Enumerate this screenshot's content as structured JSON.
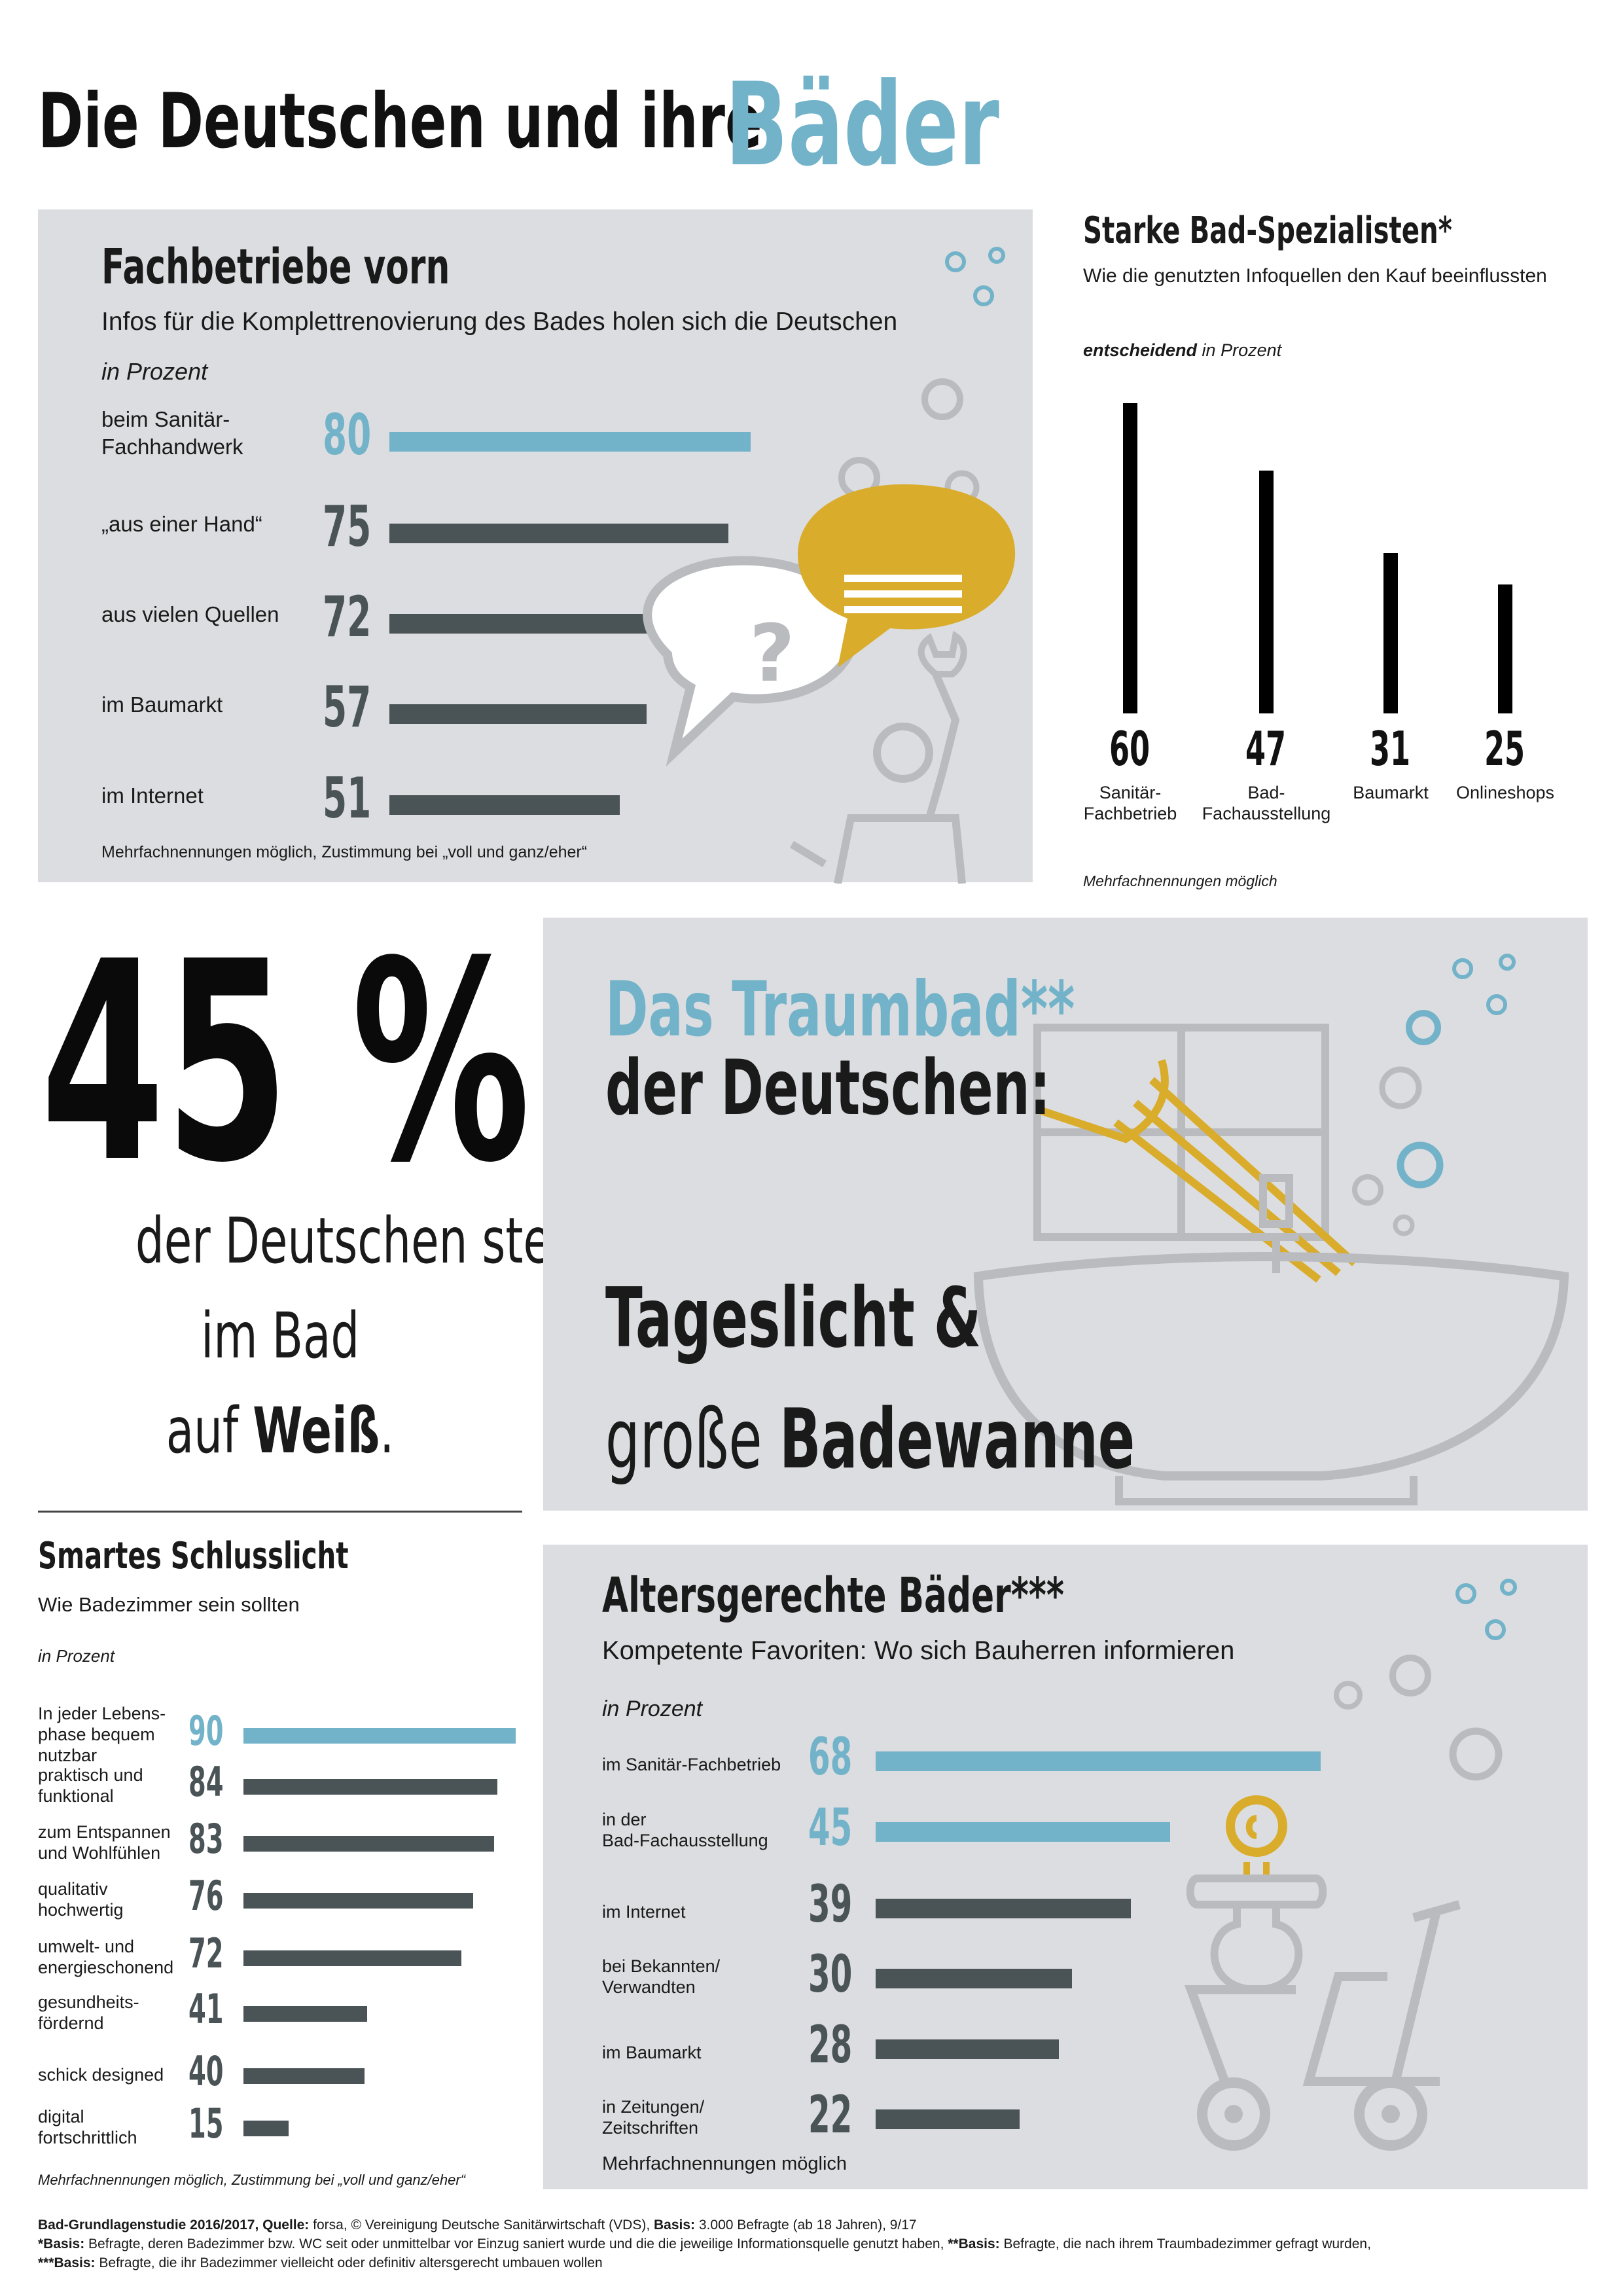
{
  "headline": {
    "part1": "Die Deutschen und ihre",
    "part2": "Bäder"
  },
  "panel1": {
    "title": "Fachbetriebe vorn",
    "subtitle": "Infos für die Komplettrenovierung des Bades holen sich die Deutschen",
    "unit": "in Prozent",
    "rows": [
      {
        "label1": "beim Sanitär-",
        "label2": "Fachhandwerk",
        "value": "80"
      },
      {
        "label1": "„aus einer Hand“",
        "label2": "",
        "value": "75"
      },
      {
        "label1": "aus vielen Quellen",
        "label2": "",
        "value": "72"
      },
      {
        "label1": "im Baumarkt",
        "label2": "",
        "value": "57"
      },
      {
        "label1": "im Internet",
        "label2": "",
        "value": "51"
      }
    ],
    "footnote": "Mehrfachnennungen möglich, Zustimmung bei „voll und ganz/eher“"
  },
  "panel2": {
    "title": "Starke Bad-Spezialisten*",
    "subtitle": "Wie die genutzten Infoquellen den Kauf beeinflussten",
    "unit_bold": "entscheidend",
    "unit_rest": " in Prozent",
    "bars": [
      {
        "value": "60",
        "label1": "Sanitär-",
        "label2": "Fachbetrieb"
      },
      {
        "value": "47",
        "label1": "Bad-",
        "label2": "Fachausstellung"
      },
      {
        "value": "31",
        "label1": "Baumarkt",
        "label2": ""
      },
      {
        "value": "25",
        "label1": "Onlineshops",
        "label2": ""
      }
    ],
    "footnote": "Mehrfachnennungen möglich"
  },
  "panel3": {
    "big": "45 %",
    "line1": "der Deutschen stehen",
    "line2": "im Bad",
    "line3a": "auf ",
    "line3b": "Weiß",
    "line3c": "."
  },
  "panel4": {
    "title1": "Das Traumbad**",
    "title2": "der Deutschen:",
    "line1": "Tageslicht &",
    "line2a": "große ",
    "line2b": "Badewanne"
  },
  "panel5": {
    "title": "Smartes Schlusslicht",
    "subtitle": "Wie Badezimmer sein sollten",
    "unit": "in Prozent",
    "rows": [
      {
        "label": [
          "In jeder Lebens-",
          "phase bequem",
          "nutzbar"
        ],
        "value": "90"
      },
      {
        "label": [
          "praktisch und",
          "funktional"
        ],
        "value": "84"
      },
      {
        "label": [
          "zum Entspannen",
          "und Wohlfühlen"
        ],
        "value": "83"
      },
      {
        "label": [
          "qualitativ",
          "hochwertig"
        ],
        "value": "76"
      },
      {
        "label": [
          "umwelt- und",
          "energieschonend"
        ],
        "value": "72"
      },
      {
        "label": [
          "gesundheits-",
          "fördernd"
        ],
        "value": "41"
      },
      {
        "label": [
          "schick designed"
        ],
        "value": "40"
      },
      {
        "label": [
          "digital",
          "fortschrittlich"
        ],
        "value": "15"
      }
    ],
    "footnote": "Mehrfachnennungen möglich, Zustimmung bei „voll und ganz/eher“"
  },
  "panel6": {
    "title": "Altersgerechte Bäder***",
    "subtitle": "Kompetente Favoriten: Wo sich Bauherren informieren",
    "unit": "in Prozent",
    "rows": [
      {
        "label": [
          "im Sanitär-Fachbetrieb"
        ],
        "value": "68"
      },
      {
        "label": [
          "in der",
          "Bad-Fachausstellung"
        ],
        "value": "45"
      },
      {
        "label": [
          "im Internet"
        ],
        "value": "39"
      },
      {
        "label": [
          "bei Bekannten/",
          "Verwandten"
        ],
        "value": "30"
      },
      {
        "label": [
          "im Baumarkt"
        ],
        "value": "28"
      },
      {
        "label": [
          "in Zeitungen/",
          "Zeitschriften"
        ],
        "value": "22"
      }
    ],
    "footnote": "Mehrfachnennungen möglich"
  },
  "footer": {
    "l1_b1": "Bad-Grundlagenstudie 2016/2017, Quelle:",
    "l1_t1": " forsa, © Vereinigung Deutsche Sanitärwirtschaft (VDS), ",
    "l1_b2": "Basis:",
    "l1_t2": " 3.000 Befragte (ab 18 Jahren), 9/17",
    "l2_b1": "*Basis:",
    "l2_t1": " Befragte, deren Badezimmer bzw. WC seit oder unmittelbar vor Einzug saniert wurde und die die jeweilige Informationsquelle genutzt haben, ",
    "l2_b2": "**Basis:",
    "l2_t2": " Befragte, die nach ihrem Traumbadezimmer gefragt wurden,",
    "l3_b1": "***Basis:",
    "l3_t1": " Befragte, die ihr Badezimmer vielleicht oder definitiv altersgerecht umbauen wollen"
  },
  "colors": {
    "accent": "#72b3c9",
    "bar_dark": "#4a5355",
    "panel": "#dcdde0",
    "yellow": "#d9ac2b",
    "icon_gray": "#b9bbbe"
  },
  "chart_data": [
    {
      "type": "bar",
      "title": "Fachbetriebe vorn",
      "unit": "in Prozent",
      "categories": [
        "beim Sanitär-Fachhandwerk",
        "„aus einer Hand“",
        "aus vielen Quellen",
        "im Baumarkt",
        "im Internet"
      ],
      "values": [
        80,
        75,
        72,
        57,
        51
      ]
    },
    {
      "type": "bar",
      "title": "Starke Bad-Spezialisten*",
      "unit": "entscheidend in Prozent",
      "categories": [
        "Sanitär-Fachbetrieb",
        "Bad-Fachausstellung",
        "Baumarkt",
        "Onlineshops"
      ],
      "values": [
        60,
        47,
        31,
        25
      ]
    },
    {
      "type": "bar",
      "title": "Smartes Schlusslicht",
      "unit": "in Prozent",
      "categories": [
        "In jeder Lebensphase bequem nutzbar",
        "praktisch und funktional",
        "zum Entspannen und Wohlfühlen",
        "qualitativ hochwertig",
        "umwelt- und energieschonend",
        "gesundheitsfördernd",
        "schick designed",
        "digital fortschrittlich"
      ],
      "values": [
        90,
        84,
        83,
        76,
        72,
        41,
        40,
        15
      ]
    },
    {
      "type": "bar",
      "title": "Altersgerechte Bäder***",
      "unit": "in Prozent",
      "categories": [
        "im Sanitär-Fachbetrieb",
        "in der Bad-Fachausstellung",
        "im Internet",
        "bei Bekannten/Verwandten",
        "im Baumarkt",
        "in Zeitungen/Zeitschriften"
      ],
      "values": [
        68,
        45,
        39,
        30,
        28,
        22
      ]
    }
  ]
}
